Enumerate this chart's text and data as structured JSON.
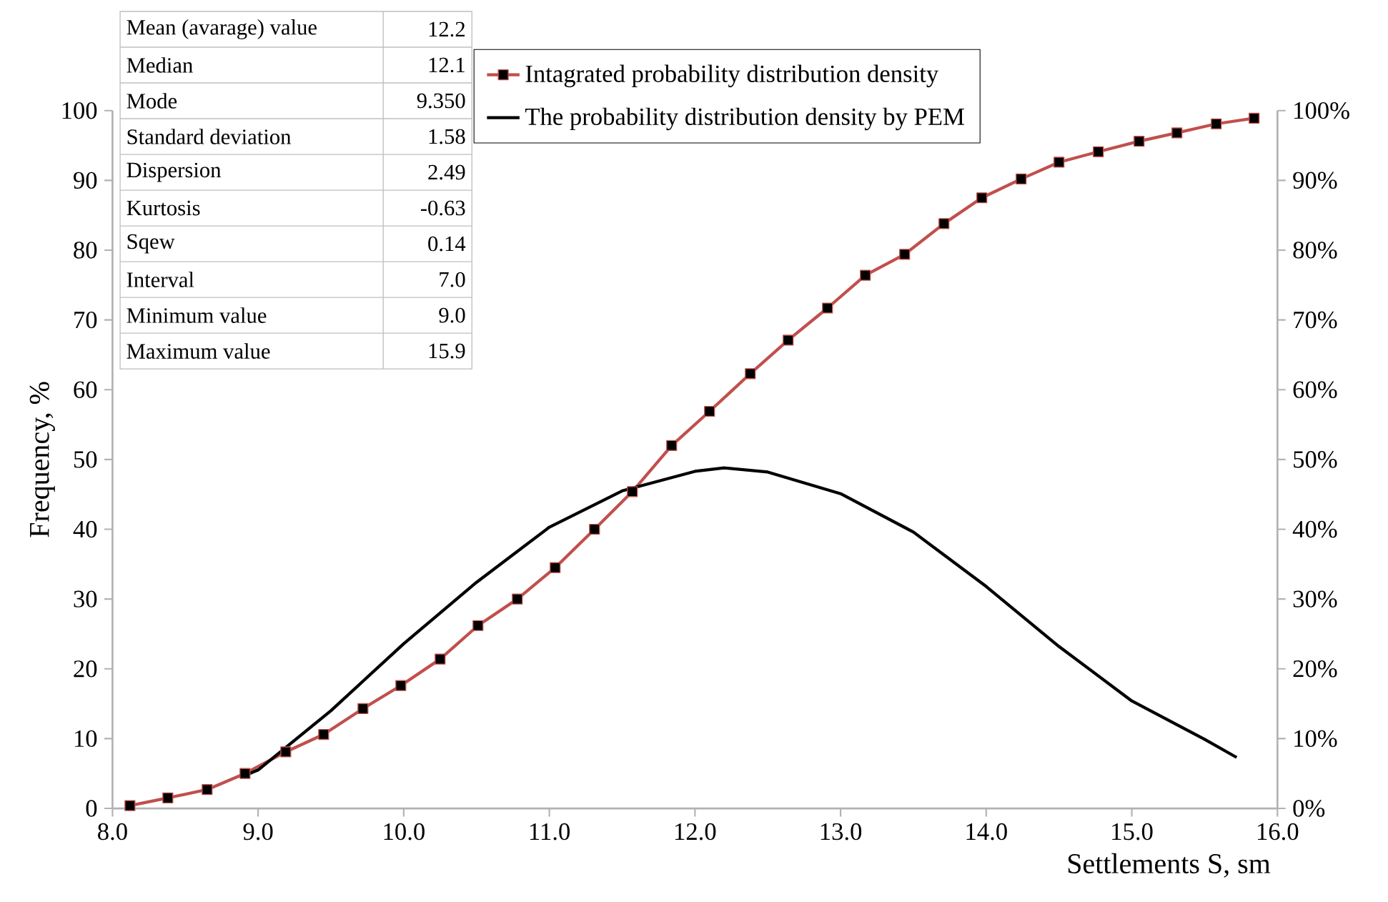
{
  "chart_data": {
    "type": "line",
    "xlabel": "Settlements S, sm",
    "ylabel": "Frequency, %",
    "xlim": [
      8,
      16
    ],
    "xticks": [
      {
        "value": 8,
        "label": "8.0"
      },
      {
        "value": 9,
        "label": "9.0"
      },
      {
        "value": 10,
        "label": "10.0"
      },
      {
        "value": 11,
        "label": "11.0"
      },
      {
        "value": 12,
        "label": "12.0"
      },
      {
        "value": 13,
        "label": "13.0"
      },
      {
        "value": 14,
        "label": "14.0"
      },
      {
        "value": 15,
        "label": "15.0"
      },
      {
        "value": 16,
        "label": "16.0"
      }
    ],
    "ylim": [
      0,
      100
    ],
    "yticks": [
      0,
      10,
      20,
      30,
      40,
      50,
      60,
      70,
      80,
      90,
      100
    ],
    "y2lim": [
      0,
      100
    ],
    "y2ticks": [
      {
        "value": 0,
        "label": "0%"
      },
      {
        "value": 10,
        "label": "10%"
      },
      {
        "value": 20,
        "label": "20%"
      },
      {
        "value": 30,
        "label": "30%"
      },
      {
        "value": 40,
        "label": "40%"
      },
      {
        "value": 50,
        "label": "50%"
      },
      {
        "value": 60,
        "label": "60%"
      },
      {
        "value": 70,
        "label": "70%"
      },
      {
        "value": 80,
        "label": "80%"
      },
      {
        "value": 90,
        "label": "90%"
      },
      {
        "value": 100,
        "label": "100%"
      }
    ],
    "grid": false,
    "legend": "top",
    "series": [
      {
        "name": "Intagrated probability distribution density",
        "color": "#c0504d",
        "marker": "square",
        "x": [
          8.12,
          8.38,
          8.65,
          8.91,
          9.19,
          9.45,
          9.72,
          9.98,
          10.25,
          10.51,
          10.78,
          11.04,
          11.31,
          11.57,
          11.84,
          12.1,
          12.38,
          12.64,
          12.91,
          13.17,
          13.44,
          13.71,
          13.97,
          14.24,
          14.5,
          14.77,
          15.05,
          15.31,
          15.58,
          15.84
        ],
        "values": [
          0.4,
          1.5,
          2.7,
          5.0,
          8.1,
          10.6,
          14.3,
          17.6,
          21.4,
          26.2,
          30.0,
          34.5,
          40.0,
          45.4,
          52.0,
          56.9,
          62.3,
          67.1,
          71.7,
          76.4,
          79.4,
          83.8,
          87.5,
          90.2,
          92.6,
          94.1,
          95.6,
          96.8,
          98.1,
          98.9
        ]
      },
      {
        "name": "The probability distribution density by PEM",
        "color": "#000000",
        "marker": "none",
        "x": [
          8.93,
          9.0,
          9.5,
          10.0,
          10.5,
          11.0,
          11.5,
          12.0,
          12.2,
          12.5,
          13.0,
          13.5,
          14.0,
          14.5,
          15.0,
          15.5,
          15.72
        ],
        "values": [
          4.9,
          5.5,
          14.0,
          23.6,
          32.4,
          40.3,
          45.5,
          48.3,
          48.8,
          48.2,
          45.1,
          39.6,
          31.8,
          23.2,
          15.4,
          9.9,
          7.3
        ]
      }
    ],
    "annotations": [
      "Mean (avarage) value",
      "12.2",
      "Median",
      "12.1",
      "Mode",
      "9.350",
      "Standard deviation",
      "1.58",
      "Dispersion",
      "2.49",
      "Kurtosis",
      "-0.63",
      "Sqew",
      "0.14",
      "Interval",
      "7.0",
      "Minimum value",
      "9.0",
      "Maximum value",
      "15.9"
    ]
  }
}
